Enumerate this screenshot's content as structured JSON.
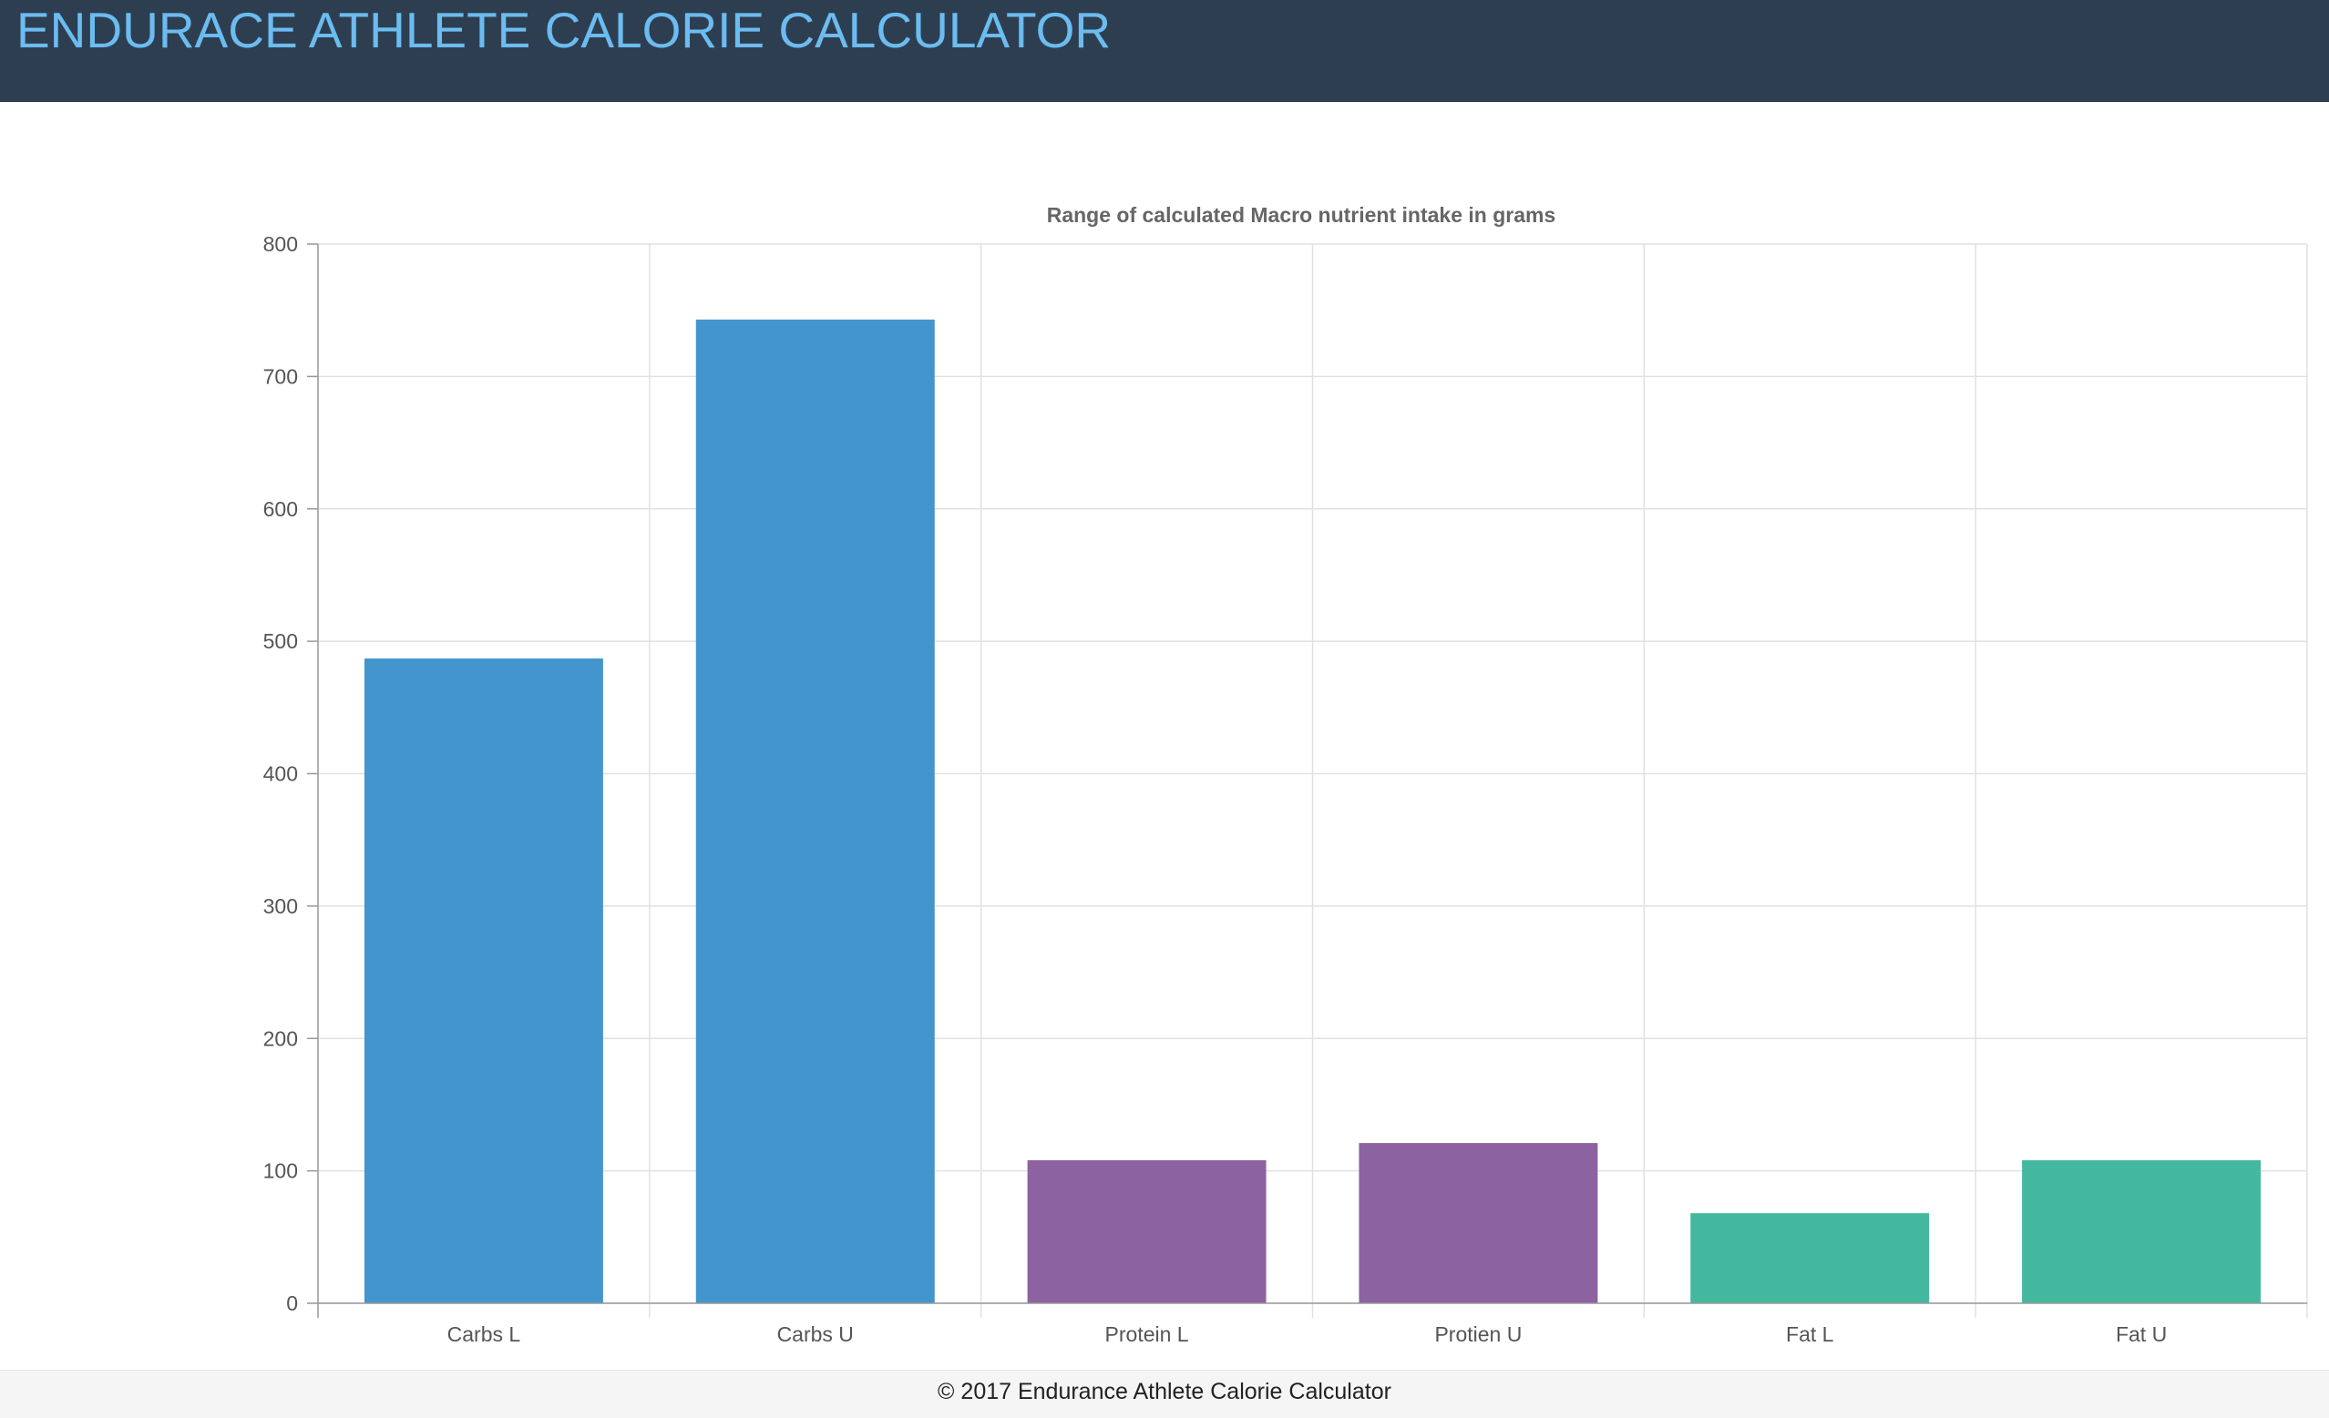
{
  "header": {
    "title": "ENDURACE ATHLETE CALORIE CALCULATOR"
  },
  "chart_data": {
    "type": "bar",
    "title": "Range of calculated Macro nutrient intake in grams",
    "xlabel": "",
    "ylabel": "",
    "categories": [
      "Carbs L",
      "Carbs U",
      "Protein L",
      "Protien U",
      "Fat L",
      "Fat U"
    ],
    "values": [
      487,
      743,
      108,
      121,
      68,
      108
    ],
    "colors": [
      "#4396cd",
      "#4396cd",
      "#8d62a0",
      "#8d62a0",
      "#44b89e",
      "#44b89e"
    ],
    "ylim": [
      0,
      800
    ],
    "yticks": [
      0,
      100,
      200,
      300,
      400,
      500,
      600,
      700,
      800
    ],
    "grid": true,
    "legend": "none"
  },
  "footer": {
    "text": "© 2017 Endurance Athlete Calorie Calculator"
  }
}
